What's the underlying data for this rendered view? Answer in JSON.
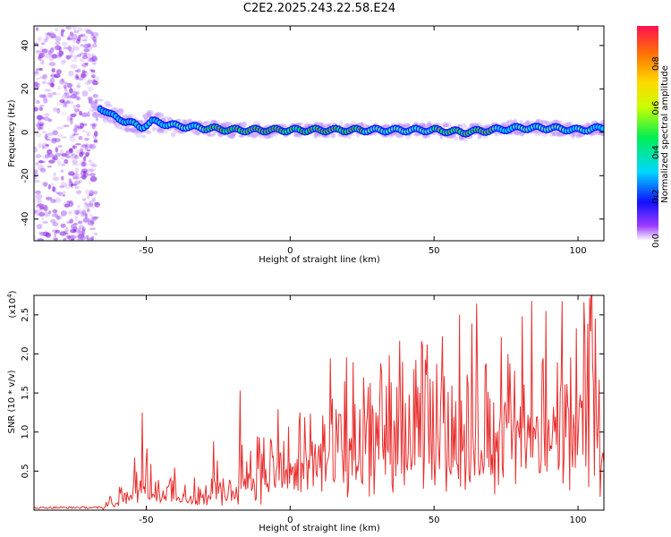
{
  "title": "C2E2.2025.243.22.58.E24",
  "chart_data": [
    {
      "type": "heatmap",
      "xlabel": "Height of straight line (km)",
      "ylabel": "Frequency (Hz)",
      "xlim": [
        -89,
        109
      ],
      "ylim": [
        -50,
        49
      ],
      "xticks": [
        -50,
        0,
        50,
        100
      ],
      "yticks": [
        -40,
        -20,
        0,
        20,
        40
      ],
      "ridge": {
        "x": [
          -68,
          -64,
          -60,
          -56,
          -52,
          -48,
          -44,
          -40,
          -30,
          -20,
          -10,
          0,
          10,
          20,
          30,
          40,
          50,
          60,
          70,
          80,
          90,
          100,
          109
        ],
        "freq": [
          12,
          10,
          6,
          5,
          2,
          5,
          4,
          3,
          2,
          1,
          1,
          1,
          1,
          1,
          1,
          1,
          1,
          0,
          1,
          2,
          2,
          1,
          2
        ]
      },
      "colorbar": {
        "label": "Normalized spectral amplitude",
        "ticks": [
          0.0,
          0.2,
          0.4,
          0.6,
          0.8
        ],
        "range": [
          0,
          0.97
        ]
      }
    },
    {
      "type": "line",
      "xlabel": "Height of straight line (km)",
      "ylabel": "SNR (10 * v/v)",
      "scale_note_base": "(x10",
      "scale_note_exp": "4",
      "scale_note_end": ")",
      "xlim": [
        -89,
        109
      ],
      "ylim": [
        0,
        2.75
      ],
      "xticks": [
        -50,
        0,
        50,
        100
      ],
      "yticks": [
        0.5,
        1.0,
        1.5,
        2.0,
        2.5
      ],
      "ytick_labels": [
        "0.5",
        "1.0",
        "1.5",
        "2.0",
        "2.5"
      ],
      "color": "#e8302f",
      "envelope": {
        "x": [
          -89,
          -65,
          -62,
          -57,
          -52,
          -48,
          -42,
          -37,
          -30,
          -26,
          -20,
          -16,
          -10,
          -5,
          0,
          5,
          10,
          20,
          30,
          40,
          50,
          60,
          70,
          80,
          90,
          100,
          104,
          109
        ],
        "y": [
          0.02,
          0.03,
          0.2,
          0.5,
          0.85,
          0.55,
          0.45,
          0.35,
          0.3,
          0.55,
          0.45,
          1.0,
          0.85,
          1.05,
          0.9,
          1.2,
          1.3,
          1.55,
          1.65,
          1.8,
          1.9,
          1.95,
          1.95,
          2.0,
          2.1,
          2.1,
          2.35,
          1.85
        ]
      },
      "peaks": [
        {
          "x": -51.5,
          "y": 1.25
        },
        {
          "x": -26.5,
          "y": 0.88
        },
        {
          "x": -17.5,
          "y": 1.53
        },
        {
          "x": 59,
          "y": 2.5
        },
        {
          "x": 89,
          "y": 2.55
        },
        {
          "x": 104,
          "y": 2.72
        }
      ]
    }
  ]
}
